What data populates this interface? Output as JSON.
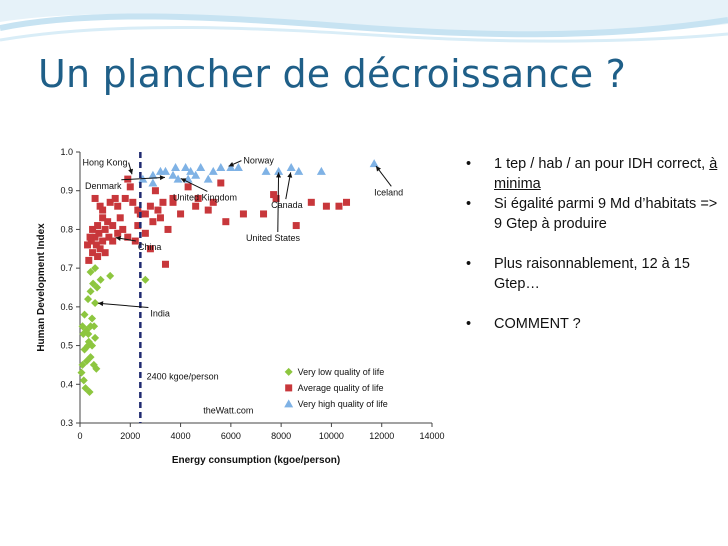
{
  "slide": {
    "title": "Un plancher de décroissance ?"
  },
  "bullets": [
    {
      "parts": [
        {
          "text": "1 tep / hab / an pour IDH correct, "
        },
        {
          "text": "à minima",
          "underline": true
        }
      ]
    },
    {
      "parts": [
        {
          "text": "Si égalité parmi 9 Md d’habitats => 9 Gtep à produire"
        }
      ]
    },
    {
      "parts": [
        {
          "text": "Plus raisonnablement, 12 à 15 Gtep…"
        }
      ],
      "gap": true
    },
    {
      "parts": [
        {
          "text": "COMMENT ?"
        }
      ],
      "gap": true
    }
  ],
  "bullet_symbol": "•",
  "colors": {
    "title": "#1f5f88",
    "very_low": "#8dc63f",
    "average": "#c8373b",
    "very_high": "#7fb2e5",
    "threshold": "#1f2a70"
  },
  "chart_data": {
    "type": "scatter",
    "xlabel": "Energy consumption (kgoe/person)",
    "ylabel": "Human Development Index",
    "xlim": [
      0,
      14000
    ],
    "ylim": [
      0.3,
      1.0
    ],
    "x_ticks": [
      "0",
      "2000",
      "4000",
      "6000",
      "8000",
      "10000",
      "12000",
      "14000"
    ],
    "y_ticks": [
      "0.3",
      "0.4",
      "0.5",
      "0.6",
      "0.7",
      "0.8",
      "0.9",
      "1.0"
    ],
    "grid": false,
    "threshold": {
      "x": 2400,
      "label": "2400 kgoe/person"
    },
    "watermark": "theWatt.com",
    "legend_position": "bottom-right",
    "series": [
      {
        "name": "Very low quality of life",
        "marker": "diamond",
        "points": [
          [
            60,
            0.43
          ],
          [
            150,
            0.41
          ],
          [
            220,
            0.39
          ],
          [
            380,
            0.38
          ],
          [
            100,
            0.45
          ],
          [
            270,
            0.46
          ],
          [
            420,
            0.47
          ],
          [
            550,
            0.45
          ],
          [
            650,
            0.44
          ],
          [
            180,
            0.49
          ],
          [
            320,
            0.5
          ],
          [
            480,
            0.5
          ],
          [
            600,
            0.52
          ],
          [
            130,
            0.53
          ],
          [
            260,
            0.54
          ],
          [
            420,
            0.55
          ],
          [
            100,
            0.55
          ],
          [
            330,
            0.53
          ],
          [
            560,
            0.55
          ],
          [
            480,
            0.57
          ],
          [
            180,
            0.58
          ],
          [
            600,
            0.61
          ],
          [
            320,
            0.62
          ],
          [
            420,
            0.64
          ],
          [
            520,
            0.66
          ],
          [
            680,
            0.65
          ],
          [
            820,
            0.67
          ],
          [
            420,
            0.69
          ],
          [
            600,
            0.7
          ],
          [
            1200,
            0.68
          ],
          [
            2600,
            0.67
          ],
          [
            350,
            0.51
          ]
        ]
      },
      {
        "name": "Average quality of life",
        "marker": "square",
        "points": [
          [
            350,
            0.72
          ],
          [
            500,
            0.74
          ],
          [
            650,
            0.76
          ],
          [
            800,
            0.75
          ],
          [
            450,
            0.77
          ],
          [
            600,
            0.78
          ],
          [
            750,
            0.79
          ],
          [
            900,
            0.77
          ],
          [
            1000,
            0.8
          ],
          [
            1150,
            0.78
          ],
          [
            1300,
            0.77
          ],
          [
            500,
            0.8
          ],
          [
            700,
            0.81
          ],
          [
            900,
            0.83
          ],
          [
            1100,
            0.82
          ],
          [
            1300,
            0.81
          ],
          [
            1500,
            0.79
          ],
          [
            1700,
            0.8
          ],
          [
            1900,
            0.78
          ],
          [
            2200,
            0.77
          ],
          [
            800,
            0.86
          ],
          [
            1200,
            0.87
          ],
          [
            1500,
            0.86
          ],
          [
            1800,
            0.88
          ],
          [
            2100,
            0.87
          ],
          [
            2300,
            0.85
          ],
          [
            2600,
            0.84
          ],
          [
            2900,
            0.82
          ],
          [
            3200,
            0.83
          ],
          [
            3500,
            0.8
          ],
          [
            3700,
            0.87
          ],
          [
            4000,
            0.84
          ],
          [
            4600,
            0.86
          ],
          [
            5100,
            0.85
          ],
          [
            5800,
            0.82
          ],
          [
            6500,
            0.84
          ],
          [
            7300,
            0.84
          ],
          [
            3400,
            0.71
          ],
          [
            2800,
            0.75
          ],
          [
            1000,
            0.74
          ],
          [
            700,
            0.73
          ],
          [
            400,
            0.78
          ],
          [
            7800,
            0.88
          ],
          [
            8600,
            0.81
          ],
          [
            9200,
            0.87
          ],
          [
            9800,
            0.86
          ],
          [
            10300,
            0.86
          ],
          [
            10600,
            0.87
          ],
          [
            600,
            0.88
          ],
          [
            1400,
            0.88
          ],
          [
            2000,
            0.91
          ],
          [
            2800,
            0.86
          ],
          [
            3000,
            0.9
          ],
          [
            4300,
            0.91
          ],
          [
            4700,
            0.88
          ],
          [
            5600,
            0.92
          ],
          [
            7700,
            0.89
          ],
          [
            900,
            0.85
          ],
          [
            300,
            0.76
          ],
          [
            1600,
            0.83
          ],
          [
            2400,
            0.84
          ],
          [
            5300,
            0.87
          ],
          [
            1900,
            0.93
          ],
          [
            2600,
            0.79
          ],
          [
            3100,
            0.85
          ],
          [
            3700,
            0.88
          ],
          [
            2300,
            0.81
          ],
          [
            3300,
            0.87
          ]
        ]
      },
      {
        "name": "Very high quality of life",
        "marker": "triangle",
        "points": [
          [
            2500,
            0.93
          ],
          [
            2900,
            0.94
          ],
          [
            3200,
            0.95
          ],
          [
            3400,
            0.95
          ],
          [
            3700,
            0.94
          ],
          [
            3800,
            0.96
          ],
          [
            3900,
            0.93
          ],
          [
            4200,
            0.96
          ],
          [
            4400,
            0.95
          ],
          [
            4600,
            0.94
          ],
          [
            4800,
            0.96
          ],
          [
            5300,
            0.95
          ],
          [
            5600,
            0.96
          ],
          [
            6000,
            0.96
          ],
          [
            6300,
            0.96
          ],
          [
            7400,
            0.95
          ],
          [
            7900,
            0.95
          ],
          [
            8400,
            0.96
          ],
          [
            8700,
            0.95
          ],
          [
            9600,
            0.95
          ],
          [
            11700,
            0.97
          ],
          [
            2900,
            0.92
          ],
          [
            4300,
            0.93
          ],
          [
            5100,
            0.93
          ]
        ]
      }
    ],
    "annotations": [
      {
        "text": "Hong Kong",
        "at": [
          2100,
          0.935
        ],
        "label": [
          100,
          0.965
        ]
      },
      {
        "text": "Denmark",
        "at": [
          3500,
          0.935
        ],
        "label": [
          200,
          0.905
        ]
      },
      {
        "text": "Norway",
        "at": [
          5800,
          0.96
        ],
        "label": [
          6500,
          0.97
        ]
      },
      {
        "text": "Iceland",
        "at": [
          11700,
          0.97
        ],
        "label": [
          11700,
          0.888
        ]
      },
      {
        "text": "United Kingdom",
        "at": [
          3900,
          0.935
        ],
        "label": [
          3700,
          0.875
        ]
      },
      {
        "text": "Canada",
        "at": [
          8400,
          0.955
        ],
        "label": [
          7600,
          0.855
        ]
      },
      {
        "text": "United States",
        "at": [
          7900,
          0.955
        ],
        "label": [
          6600,
          0.77
        ]
      },
      {
        "text": "China",
        "at": [
          1300,
          0.78
        ],
        "label": [
          2300,
          0.747
        ]
      },
      {
        "text": "India",
        "at": [
          600,
          0.61
        ],
        "label": [
          2800,
          0.575
        ]
      }
    ]
  }
}
